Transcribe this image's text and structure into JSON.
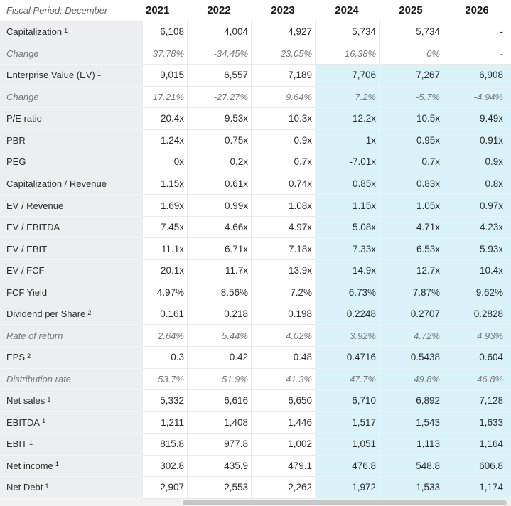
{
  "table": {
    "fiscal_period_label": "Fiscal Period: December",
    "years": [
      "2021",
      "2022",
      "2023",
      "2024",
      "2025",
      "2026"
    ],
    "rows": [
      {
        "label": "Capitalization",
        "sup": "1",
        "italic": false,
        "highlight": false,
        "values": [
          "6,108",
          "4,004",
          "4,927",
          "5,734",
          "5,734",
          "-"
        ]
      },
      {
        "label": "Change",
        "italic": true,
        "highlight": false,
        "values": [
          "37.78%",
          "-34.45%",
          "23.05%",
          "16.38%",
          "0%",
          "-"
        ]
      },
      {
        "label": "Enterprise Value (EV)",
        "sup": "1",
        "italic": false,
        "highlight": true,
        "values": [
          "9,015",
          "6,557",
          "7,189",
          "7,706",
          "7,267",
          "6,908"
        ]
      },
      {
        "label": "Change",
        "italic": true,
        "highlight": true,
        "values": [
          "17.21%",
          "-27.27%",
          "9.64%",
          "7.2%",
          "-5.7%",
          "-4.94%"
        ]
      },
      {
        "label": "P/E ratio",
        "italic": false,
        "highlight": true,
        "values": [
          "20.4x",
          "9.53x",
          "10.3x",
          "12.2x",
          "10.5x",
          "9.49x"
        ]
      },
      {
        "label": "PBR",
        "italic": false,
        "highlight": true,
        "values": [
          "1.24x",
          "0.75x",
          "0.9x",
          "1x",
          "0.95x",
          "0.91x"
        ]
      },
      {
        "label": "PEG",
        "italic": false,
        "highlight": true,
        "values": [
          "0x",
          "0.2x",
          "0.7x",
          "-7.01x",
          "0.7x",
          "0.9x"
        ]
      },
      {
        "label": "Capitalization / Revenue",
        "italic": false,
        "highlight": true,
        "values": [
          "1.15x",
          "0.61x",
          "0.74x",
          "0.85x",
          "0.83x",
          "0.8x"
        ]
      },
      {
        "label": "EV / Revenue",
        "italic": false,
        "highlight": true,
        "values": [
          "1.69x",
          "0.99x",
          "1.08x",
          "1.15x",
          "1.05x",
          "0.97x"
        ]
      },
      {
        "label": "EV / EBITDA",
        "italic": false,
        "highlight": true,
        "values": [
          "7.45x",
          "4.66x",
          "4.97x",
          "5.08x",
          "4.71x",
          "4.23x"
        ]
      },
      {
        "label": "EV / EBIT",
        "italic": false,
        "highlight": true,
        "values": [
          "11.1x",
          "6.71x",
          "7.18x",
          "7.33x",
          "6.53x",
          "5.93x"
        ]
      },
      {
        "label": "EV / FCF",
        "italic": false,
        "highlight": true,
        "values": [
          "20.1x",
          "11.7x",
          "13.9x",
          "14.9x",
          "12.7x",
          "10.4x"
        ]
      },
      {
        "label": "FCF Yield",
        "italic": false,
        "highlight": true,
        "values": [
          "4.97%",
          "8.56%",
          "7.2%",
          "6.73%",
          "7.87%",
          "9.62%"
        ]
      },
      {
        "label": "Dividend per Share",
        "sup": "2",
        "italic": false,
        "highlight": true,
        "values": [
          "0.161",
          "0.218",
          "0.198",
          "0.2248",
          "0.2707",
          "0.2828"
        ]
      },
      {
        "label": "Rate of return",
        "italic": true,
        "highlight": true,
        "values": [
          "2.64%",
          "5.44%",
          "4.02%",
          "3.92%",
          "4.72%",
          "4.93%"
        ]
      },
      {
        "label": "EPS",
        "sup": "2",
        "italic": false,
        "highlight": true,
        "values": [
          "0.3",
          "0.42",
          "0.48",
          "0.4716",
          "0.5438",
          "0.604"
        ]
      },
      {
        "label": "Distribution rate",
        "italic": true,
        "highlight": true,
        "values": [
          "53.7%",
          "51.9%",
          "41.3%",
          "47.7%",
          "49.8%",
          "46.8%"
        ]
      },
      {
        "label": "Net sales",
        "sup": "1",
        "italic": false,
        "highlight": true,
        "values": [
          "5,332",
          "6,616",
          "6,650",
          "6,710",
          "6,892",
          "7,128"
        ]
      },
      {
        "label": "EBITDA",
        "sup": "1",
        "italic": false,
        "highlight": true,
        "values": [
          "1,211",
          "1,408",
          "1,446",
          "1,517",
          "1,543",
          "1,633"
        ]
      },
      {
        "label": "EBIT",
        "sup": "1",
        "italic": false,
        "highlight": true,
        "values": [
          "815.8",
          "977.8",
          "1,002",
          "1,051",
          "1,113",
          "1,164"
        ]
      },
      {
        "label": "Net income",
        "sup": "1",
        "italic": false,
        "highlight": true,
        "values": [
          "302.8",
          "435.9",
          "479.1",
          "476.8",
          "548.8",
          "606.8"
        ]
      },
      {
        "label": "Net Debt",
        "sup": "1",
        "italic": false,
        "highlight": true,
        "values": [
          "2,907",
          "2,553",
          "2,262",
          "1,972",
          "1,533",
          "1,174"
        ]
      }
    ]
  },
  "colors": {
    "text": "#2b2b2b",
    "muted_text": "#787878",
    "label_column_bg": "#eceef1",
    "estimate_bg": "#d9f3f8",
    "header_rule": "#4f4f4f",
    "scrollbar_track": "#f1f1f1",
    "scrollbar_thumb": "#c7c7c7"
  }
}
